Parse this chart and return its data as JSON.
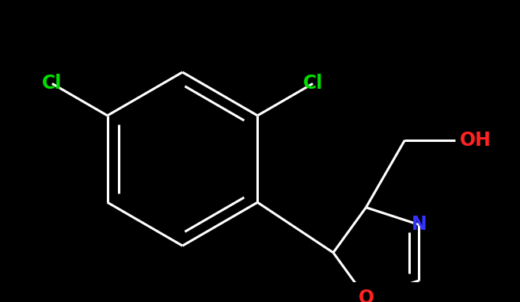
{
  "background_color": "#000000",
  "bond_color": "#ffffff",
  "bond_width": 2.2,
  "atom_colors": {
    "Cl": "#00dd00",
    "O": "#ff2222",
    "N": "#3333ff"
  },
  "font_size": 17,
  "fig_width": 6.57,
  "fig_height": 3.81,
  "dpi": 100
}
